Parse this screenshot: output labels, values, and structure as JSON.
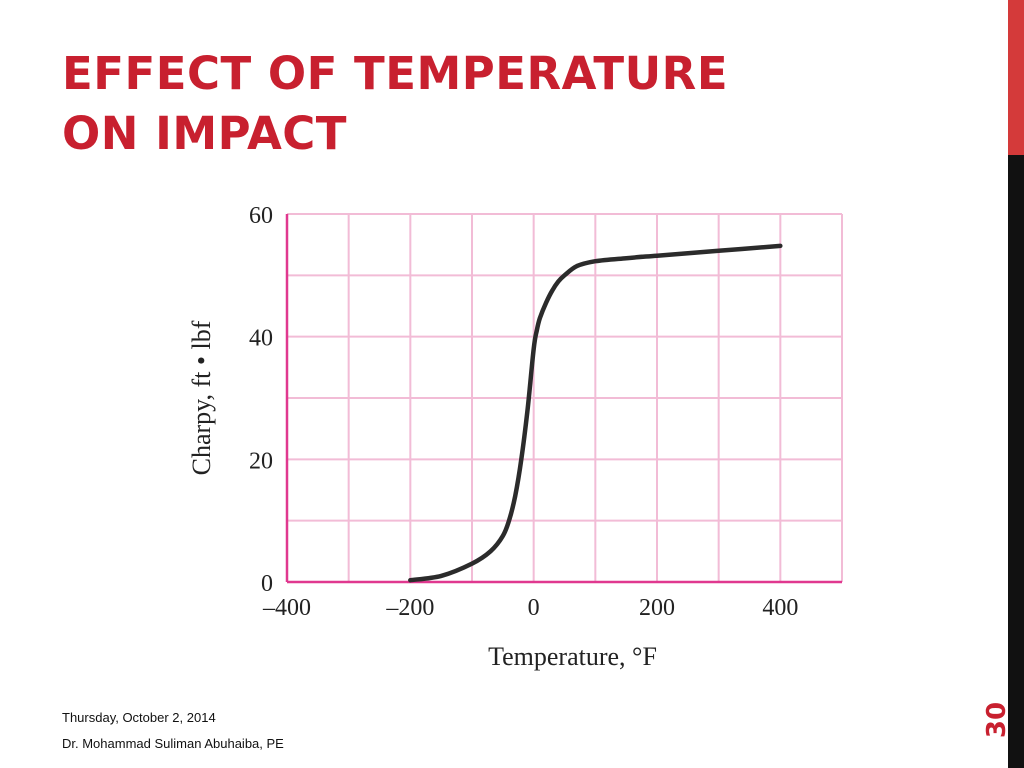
{
  "slide": {
    "title_line1": "EFFECT OF TEMPERATURE",
    "title_line2": "ON IMPACT",
    "footer_date": "Thursday, October 2, 2014",
    "footer_author": "Dr. Mohammad Suliman Abuhaiba, PE",
    "page_number": "30"
  },
  "colors": {
    "title": "#c8202f",
    "sidebar_top": "#d43a3a",
    "sidebar_bottom": "#111111",
    "grid": "#f2bcd6",
    "axis": "#e0388f",
    "curve": "#2b2b2b"
  },
  "chart_data": {
    "type": "line",
    "title": "",
    "xlabel": "Temperature, °F",
    "ylabel": "Charpy, ft • lbf",
    "xlim": [
      -400,
      500
    ],
    "ylim": [
      0,
      60
    ],
    "x_ticks": [
      -400,
      -300,
      -200,
      -100,
      0,
      100,
      200,
      300,
      400,
      500
    ],
    "x_tick_labels": [
      "–400",
      "",
      "–200",
      "",
      "0",
      "",
      "200",
      "",
      "400",
      ""
    ],
    "y_ticks": [
      0,
      10,
      20,
      30,
      40,
      50,
      60
    ],
    "y_tick_labels": [
      "0",
      "",
      "20",
      "",
      "40",
      "",
      "60"
    ],
    "grid": true,
    "legend": "none",
    "series": [
      {
        "x": [
          -200,
          -150,
          -100,
          -70,
          -50,
          -40,
          -30,
          -20,
          -10,
          0,
          5,
          10,
          20,
          30,
          40,
          50,
          70,
          100,
          150,
          200,
          300,
          400
        ],
        "y": [
          0.3,
          1,
          3,
          5,
          7.5,
          10,
          14,
          20,
          28,
          38,
          41,
          43,
          45.5,
          47.5,
          49,
          50,
          51.5,
          52.3,
          52.8,
          53.2,
          54,
          54.8
        ]
      }
    ]
  }
}
